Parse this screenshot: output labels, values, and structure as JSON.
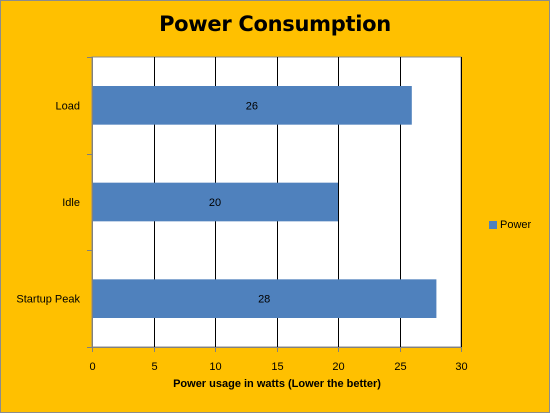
{
  "chart_data": {
    "type": "bar",
    "orientation": "horizontal",
    "title": "Power Consumption",
    "xlabel": "Power usage in watts (Lower the better)",
    "ylabel": "",
    "categories": [
      "Load",
      "Idle",
      "Startup Peak"
    ],
    "series": [
      {
        "name": "Power",
        "values": [
          26,
          20,
          28
        ],
        "color": "#4F81BD"
      }
    ],
    "data_labels": [
      "26",
      "20",
      "28"
    ],
    "xlim": [
      0,
      30
    ],
    "xticks": [
      0,
      5,
      10,
      15,
      20,
      25,
      30
    ],
    "grid": "vertical major",
    "legend_position": "right",
    "background_color": "#FFC000",
    "plot_background": "#FFFFFF",
    "gridline_color": "#000000"
  }
}
